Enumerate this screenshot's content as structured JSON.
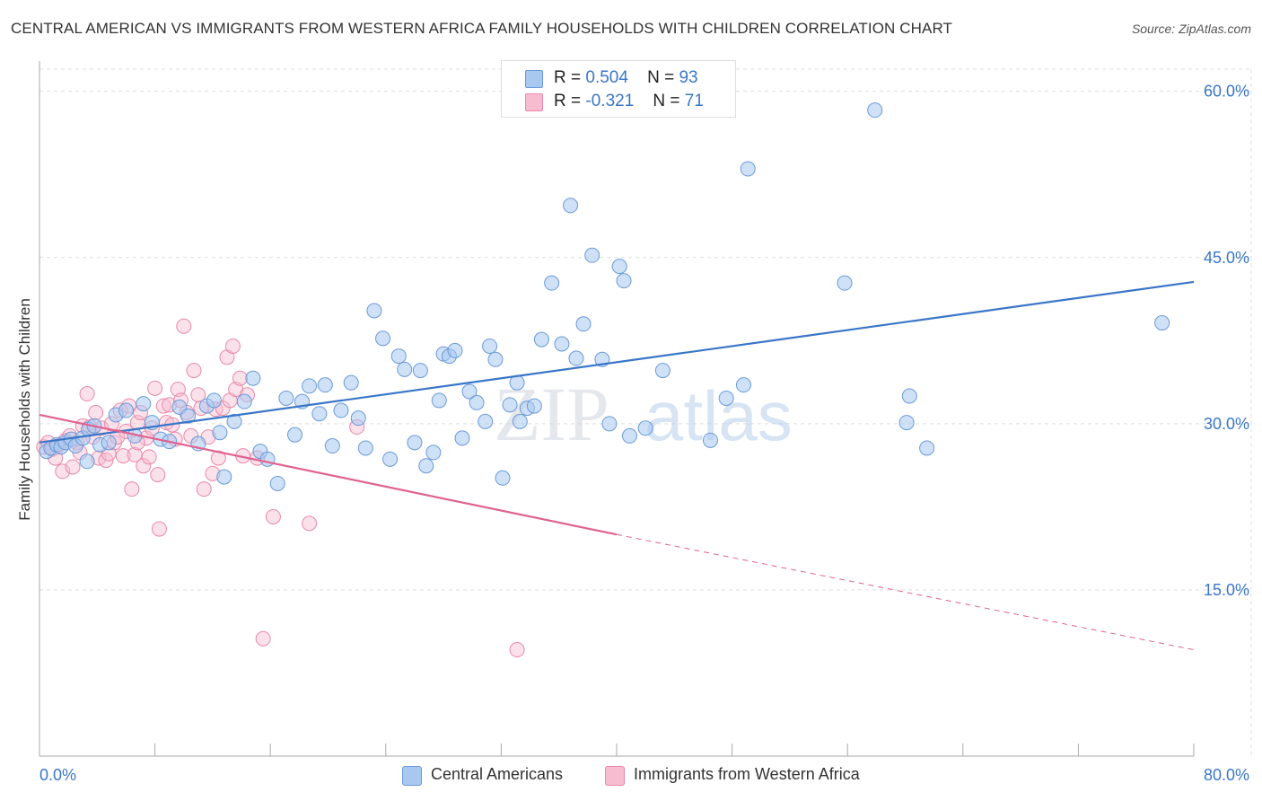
{
  "header": {
    "title": "CENTRAL AMERICAN VS IMMIGRANTS FROM WESTERN AFRICA FAMILY HOUSEHOLDS WITH CHILDREN CORRELATION CHART",
    "source": "Source: ZipAtlas.com"
  },
  "legend": {
    "blue": {
      "r_label": "R =",
      "r_value": "0.504",
      "n_label": "N =",
      "n_value": "93"
    },
    "pink": {
      "r_label": "R =",
      "r_value": "-0.321",
      "n_label": "N =",
      "n_value": "71"
    }
  },
  "watermark": {
    "zip": "ZIP",
    "atlas": "atlas"
  },
  "colors": {
    "blue_fill": "#a8c8f0",
    "blue_stroke": "#6a9ad8",
    "blue_line": "#3a76c8",
    "pink_fill": "#f7bcd0",
    "pink_stroke": "#e889a8",
    "pink_line": "#e0628f",
    "axis_text": "#3a76c8",
    "grid": "#dddddd"
  },
  "chart_data": {
    "type": "scatter",
    "title": "CENTRAL AMERICAN VS IMMIGRANTS FROM WESTERN AFRICA FAMILY HOUSEHOLDS WITH CHILDREN CORRELATION CHART",
    "xlabel": "",
    "ylabel": "Family Households with Children",
    "xlim": [
      0,
      80
    ],
    "ylim": [
      0,
      62
    ],
    "x_tick_labels": [
      "0.0%",
      "80.0%"
    ],
    "y_ticks": [
      15,
      30,
      45,
      60
    ],
    "y_tick_labels": [
      "15.0%",
      "30.0%",
      "45.0%",
      "60.0%"
    ],
    "grid": true,
    "legend_position": "top-center",
    "series": [
      {
        "name": "Central Americans",
        "color": "#a8c8f0",
        "points": [
          [
            0.5,
            27.5
          ],
          [
            0.8,
            27.8
          ],
          [
            1.2,
            28.1
          ],
          [
            1.5,
            27.9
          ],
          [
            1.8,
            28.3
          ],
          [
            2.2,
            28.6
          ],
          [
            2.5,
            28.0
          ],
          [
            3.0,
            28.7
          ],
          [
            3.4,
            29.5
          ],
          [
            3.8,
            29.8
          ],
          [
            4.2,
            28.1
          ],
          [
            4.8,
            28.3
          ],
          [
            5.3,
            30.8
          ],
          [
            6.0,
            31.2
          ],
          [
            6.6,
            28.9
          ],
          [
            7.2,
            31.8
          ],
          [
            7.8,
            30.1
          ],
          [
            8.4,
            28.6
          ],
          [
            9.0,
            28.4
          ],
          [
            9.7,
            31.5
          ],
          [
            10.3,
            30.7
          ],
          [
            11.0,
            28.2
          ],
          [
            11.6,
            31.6
          ],
          [
            12.1,
            32.1
          ],
          [
            12.5,
            29.2
          ],
          [
            12.8,
            25.2
          ],
          [
            13.5,
            30.2
          ],
          [
            14.2,
            32.0
          ],
          [
            14.8,
            34.1
          ],
          [
            15.3,
            27.5
          ],
          [
            15.8,
            26.8
          ],
          [
            16.5,
            24.6
          ],
          [
            17.1,
            32.3
          ],
          [
            17.7,
            29.0
          ],
          [
            18.2,
            32.0
          ],
          [
            18.7,
            33.4
          ],
          [
            19.4,
            30.9
          ],
          [
            19.8,
            33.5
          ],
          [
            20.3,
            28.0
          ],
          [
            20.9,
            31.2
          ],
          [
            21.6,
            33.7
          ],
          [
            22.1,
            30.5
          ],
          [
            22.6,
            27.8
          ],
          [
            23.2,
            40.2
          ],
          [
            23.8,
            37.7
          ],
          [
            24.3,
            26.8
          ],
          [
            24.9,
            36.1
          ],
          [
            25.3,
            34.9
          ],
          [
            26.0,
            28.3
          ],
          [
            26.4,
            34.8
          ],
          [
            26.8,
            26.2
          ],
          [
            27.3,
            27.4
          ],
          [
            27.7,
            32.1
          ],
          [
            28.0,
            36.3
          ],
          [
            28.4,
            36.1
          ],
          [
            28.8,
            36.6
          ],
          [
            29.3,
            28.7
          ],
          [
            29.8,
            32.9
          ],
          [
            30.3,
            31.9
          ],
          [
            30.9,
            30.2
          ],
          [
            31.2,
            37.0
          ],
          [
            31.6,
            35.8
          ],
          [
            32.1,
            25.1
          ],
          [
            32.6,
            31.7
          ],
          [
            33.1,
            33.7
          ],
          [
            33.3,
            30.2
          ],
          [
            33.8,
            31.4
          ],
          [
            34.3,
            31.6
          ],
          [
            34.8,
            37.6
          ],
          [
            35.5,
            42.7
          ],
          [
            36.2,
            37.2
          ],
          [
            36.8,
            49.7
          ],
          [
            37.2,
            35.9
          ],
          [
            37.7,
            39.0
          ],
          [
            38.3,
            45.2
          ],
          [
            39.0,
            35.8
          ],
          [
            39.5,
            30.0
          ],
          [
            40.2,
            44.2
          ],
          [
            40.5,
            42.9
          ],
          [
            40.9,
            28.9
          ],
          [
            42.0,
            29.6
          ],
          [
            43.2,
            34.8
          ],
          [
            46.5,
            28.5
          ],
          [
            47.6,
            32.3
          ],
          [
            49.1,
            53.0
          ],
          [
            48.8,
            33.5
          ],
          [
            55.8,
            42.7
          ],
          [
            57.9,
            58.3
          ],
          [
            60.1,
            30.1
          ],
          [
            60.3,
            32.5
          ],
          [
            61.5,
            27.8
          ],
          [
            77.8,
            39.1
          ],
          [
            3.3,
            26.6
          ]
        ]
      },
      {
        "name": "Immigrants from Western Africa",
        "color": "#f7bcd0",
        "points": [
          [
            0.3,
            27.9
          ],
          [
            0.6,
            28.3
          ],
          [
            0.9,
            27.7
          ],
          [
            1.1,
            26.9
          ],
          [
            1.3,
            28.0
          ],
          [
            1.6,
            25.7
          ],
          [
            1.8,
            28.5
          ],
          [
            2.1,
            28.9
          ],
          [
            2.3,
            26.1
          ],
          [
            2.6,
            28.3
          ],
          [
            2.8,
            27.4
          ],
          [
            3.0,
            29.8
          ],
          [
            3.3,
            32.7
          ],
          [
            3.5,
            29.7
          ],
          [
            3.7,
            28.8
          ],
          [
            3.9,
            31.0
          ],
          [
            4.1,
            26.9
          ],
          [
            4.3,
            29.6
          ],
          [
            4.6,
            26.7
          ],
          [
            4.8,
            27.3
          ],
          [
            5.0,
            30.0
          ],
          [
            5.2,
            28.3
          ],
          [
            5.4,
            28.8
          ],
          [
            5.6,
            31.2
          ],
          [
            5.8,
            27.1
          ],
          [
            6.0,
            29.3
          ],
          [
            6.2,
            31.6
          ],
          [
            6.4,
            24.1
          ],
          [
            6.6,
            27.2
          ],
          [
            6.8,
            30.1
          ],
          [
            7.0,
            31.0
          ],
          [
            7.2,
            26.2
          ],
          [
            7.4,
            28.7
          ],
          [
            7.6,
            27.0
          ],
          [
            7.8,
            29.6
          ],
          [
            8.0,
            33.2
          ],
          [
            8.2,
            25.4
          ],
          [
            8.3,
            20.5
          ],
          [
            8.6,
            31.6
          ],
          [
            8.8,
            30.1
          ],
          [
            9.0,
            31.7
          ],
          [
            9.2,
            29.9
          ],
          [
            9.4,
            28.6
          ],
          [
            9.6,
            33.1
          ],
          [
            9.8,
            32.1
          ],
          [
            10.0,
            38.8
          ],
          [
            10.2,
            31.0
          ],
          [
            10.5,
            28.9
          ],
          [
            10.7,
            34.8
          ],
          [
            11.0,
            32.6
          ],
          [
            11.2,
            31.4
          ],
          [
            11.4,
            24.1
          ],
          [
            11.7,
            28.8
          ],
          [
            12.0,
            25.5
          ],
          [
            12.2,
            31.3
          ],
          [
            12.4,
            26.9
          ],
          [
            12.7,
            31.4
          ],
          [
            13.0,
            36.0
          ],
          [
            13.2,
            32.1
          ],
          [
            13.4,
            37.0
          ],
          [
            13.6,
            33.1
          ],
          [
            13.9,
            34.1
          ],
          [
            14.1,
            27.1
          ],
          [
            14.4,
            32.6
          ],
          [
            15.1,
            26.9
          ],
          [
            15.5,
            10.6
          ],
          [
            16.2,
            21.6
          ],
          [
            18.7,
            21.0
          ],
          [
            22.0,
            29.7
          ],
          [
            33.1,
            9.6
          ],
          [
            6.8,
            28.3
          ]
        ]
      }
    ],
    "trendlines": [
      {
        "series": "Central Americans",
        "x": [
          0,
          80
        ],
        "y": [
          28.3,
          42.8
        ],
        "style": "solid"
      },
      {
        "series": "Immigrants from Western Africa",
        "x": [
          0,
          40
        ],
        "y": [
          30.8,
          20.0
        ],
        "style": "solid"
      },
      {
        "series": "Immigrants from Western Africa",
        "x": [
          40,
          80
        ],
        "y": [
          20.0,
          9.6
        ],
        "style": "dashed"
      }
    ]
  }
}
